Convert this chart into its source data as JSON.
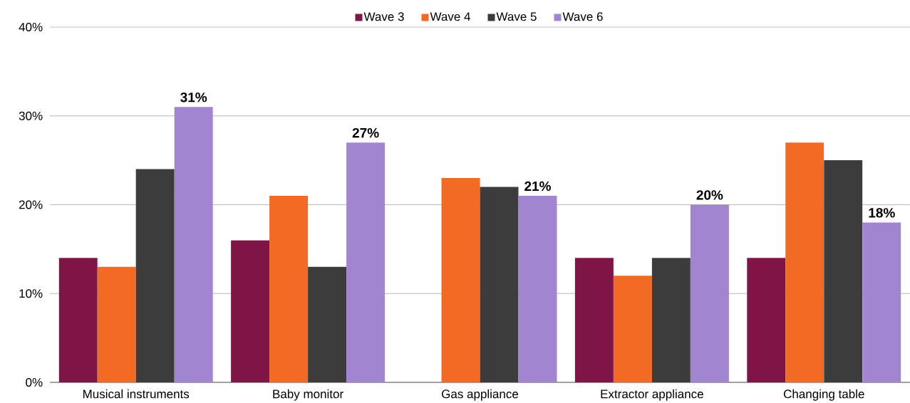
{
  "chart_data": {
    "type": "bar",
    "categories": [
      "Musical instruments",
      "Baby monitor",
      "Gas appliance",
      "Extractor appliance",
      "Changing table"
    ],
    "series": [
      {
        "name": "Wave 3",
        "color": "#7f1547",
        "values": [
          14,
          16,
          null,
          14,
          14
        ]
      },
      {
        "name": "Wave 4",
        "color": "#f26a24",
        "values": [
          13,
          21,
          23,
          12,
          27
        ]
      },
      {
        "name": "Wave 5",
        "color": "#3c3c3c",
        "values": [
          24,
          13,
          22,
          14,
          25
        ]
      },
      {
        "name": "Wave 6",
        "color": "#a285d1",
        "values": [
          31,
          27,
          21,
          20,
          18
        ],
        "value_labels": [
          "31%",
          "27%",
          "21%",
          "20%",
          "18%"
        ]
      }
    ],
    "ylim": [
      0,
      40
    ],
    "yticks": [
      {
        "value": 0,
        "label": "0%"
      },
      {
        "value": 10,
        "label": "10%"
      },
      {
        "value": 20,
        "label": "20%"
      },
      {
        "value": 30,
        "label": "30%"
      },
      {
        "value": 40,
        "label": "40%"
      }
    ],
    "grid": "y",
    "legend": "top"
  }
}
